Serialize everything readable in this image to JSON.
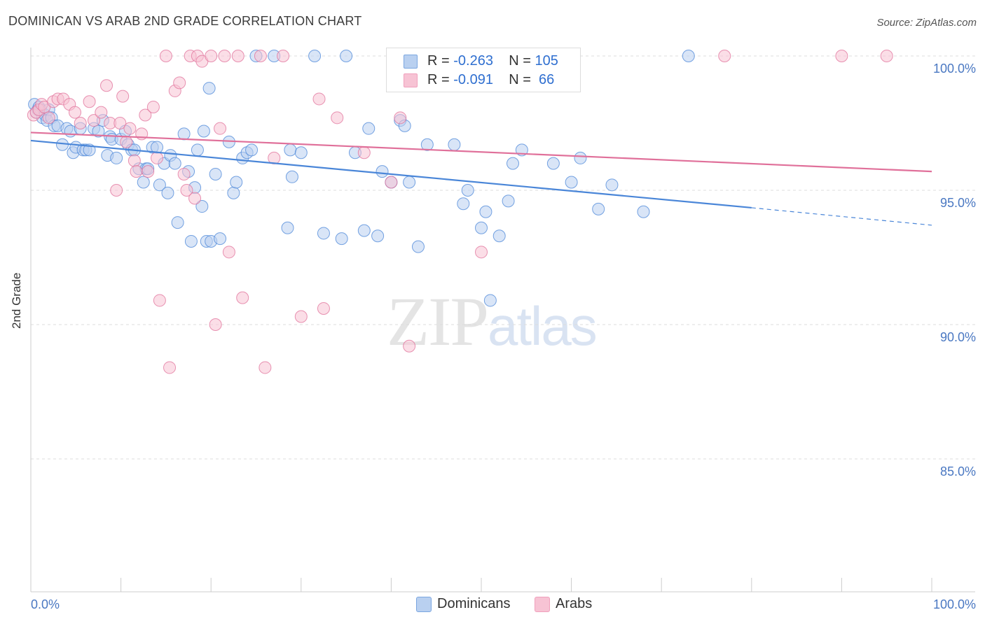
{
  "header": {
    "title": "DOMINICAN VS ARAB 2ND GRADE CORRELATION CHART",
    "source": "Source: ZipAtlas.com"
  },
  "watermark": {
    "zip": "ZIP",
    "atlas": "atlas"
  },
  "legend": {
    "dominicans": {
      "r_label": "R = ",
      "r_value": "-0.263",
      "n_label": "N = ",
      "n_value": "105",
      "color": "#7aa6e0"
    },
    "arabs": {
      "r_label": "R = ",
      "r_value": "-0.091",
      "n_label": "N = ",
      "n_value": " 66",
      "color": "#f0a0bc"
    }
  },
  "bottom_legend": {
    "dominicans": "Dominicans",
    "arabs": "Arabs"
  },
  "chart_data": {
    "type": "scatter",
    "title": "DOMINICAN VS ARAB 2ND GRADE CORRELATION CHART",
    "ylabel": "2nd Grade",
    "xlabel": "",
    "xlim": [
      0,
      100
    ],
    "ylim": [
      80,
      100.5
    ],
    "x_tick_labels": [
      "0.0%",
      "100.0%"
    ],
    "y_ticks": [
      100,
      95,
      90,
      85
    ],
    "y_tick_labels": [
      "100.0%",
      "95.0%",
      "90.0%",
      "85.0%"
    ],
    "grid": true,
    "series": [
      {
        "name": "Dominicans",
        "color": "#4a86d8",
        "fill": "#b9d0f0",
        "trend": {
          "x0": 0,
          "y0": 96.85,
          "x1": 80,
          "y1": 94.35,
          "dashed_to_x": 100,
          "dashed_to_y": 93.7
        },
        "points": [
          [
            0.4,
            98.2
          ],
          [
            0.6,
            97.9
          ],
          [
            0.8,
            98.0
          ],
          [
            0.9,
            98.1
          ],
          [
            1.1,
            98.0
          ],
          [
            1.3,
            97.7
          ],
          [
            1.6,
            97.8
          ],
          [
            1.8,
            97.6
          ],
          [
            2.0,
            98.0
          ],
          [
            2.3,
            97.7
          ],
          [
            2.6,
            97.4
          ],
          [
            3.0,
            97.4
          ],
          [
            3.5,
            96.7
          ],
          [
            4.0,
            97.3
          ],
          [
            4.4,
            97.2
          ],
          [
            4.7,
            96.4
          ],
          [
            5.0,
            96.6
          ],
          [
            5.5,
            97.3
          ],
          [
            5.8,
            96.5
          ],
          [
            6.1,
            96.5
          ],
          [
            6.5,
            96.5
          ],
          [
            7.0,
            97.3
          ],
          [
            7.5,
            97.2
          ],
          [
            8.0,
            97.6
          ],
          [
            8.5,
            96.3
          ],
          [
            8.8,
            97.0
          ],
          [
            9.0,
            96.9
          ],
          [
            9.5,
            96.2
          ],
          [
            10.0,
            96.9
          ],
          [
            10.5,
            97.2
          ],
          [
            10.8,
            96.7
          ],
          [
            11.2,
            96.5
          ],
          [
            11.5,
            96.5
          ],
          [
            12.0,
            95.8
          ],
          [
            12.5,
            95.3
          ],
          [
            12.8,
            95.8
          ],
          [
            13.0,
            95.8
          ],
          [
            13.5,
            96.6
          ],
          [
            14.0,
            96.6
          ],
          [
            14.3,
            95.2
          ],
          [
            14.8,
            96.0
          ],
          [
            15.2,
            94.9
          ],
          [
            15.5,
            96.3
          ],
          [
            16.0,
            96.0
          ],
          [
            16.3,
            93.8
          ],
          [
            17.0,
            97.1
          ],
          [
            17.5,
            95.7
          ],
          [
            17.8,
            93.1
          ],
          [
            18.2,
            95.1
          ],
          [
            18.5,
            96.5
          ],
          [
            19.0,
            94.4
          ],
          [
            19.2,
            97.2
          ],
          [
            19.5,
            93.1
          ],
          [
            19.8,
            98.8
          ],
          [
            20.0,
            93.1
          ],
          [
            20.5,
            95.6
          ],
          [
            21.0,
            93.2
          ],
          [
            22.0,
            96.8
          ],
          [
            22.5,
            94.9
          ],
          [
            22.8,
            95.3
          ],
          [
            23.5,
            96.2
          ],
          [
            24.0,
            96.4
          ],
          [
            24.5,
            96.5
          ],
          [
            25.0,
            100.0
          ],
          [
            27.0,
            100.0
          ],
          [
            28.5,
            93.6
          ],
          [
            28.8,
            96.5
          ],
          [
            29.0,
            95.5
          ],
          [
            30.0,
            96.4
          ],
          [
            31.5,
            100.0
          ],
          [
            32.5,
            93.4
          ],
          [
            34.5,
            93.2
          ],
          [
            35.0,
            100.0
          ],
          [
            36.0,
            96.4
          ],
          [
            37.0,
            93.5
          ],
          [
            37.5,
            97.3
          ],
          [
            38.5,
            93.3
          ],
          [
            39.0,
            95.7
          ],
          [
            40.0,
            95.3
          ],
          [
            40.5,
            100.0
          ],
          [
            41.0,
            97.6
          ],
          [
            41.5,
            97.4
          ],
          [
            42.0,
            95.3
          ],
          [
            43.0,
            92.9
          ],
          [
            44.0,
            96.7
          ],
          [
            47.0,
            96.7
          ],
          [
            48.0,
            94.5
          ],
          [
            48.5,
            95.0
          ],
          [
            50.0,
            93.6
          ],
          [
            50.5,
            94.2
          ],
          [
            52.0,
            93.3
          ],
          [
            53.0,
            94.6
          ],
          [
            53.5,
            96.0
          ],
          [
            54.5,
            96.5
          ],
          [
            57.0,
            100.0
          ],
          [
            58.0,
            96.0
          ],
          [
            60.0,
            95.3
          ],
          [
            61.0,
            96.2
          ],
          [
            63.0,
            94.3
          ],
          [
            64.5,
            95.2
          ],
          [
            68.0,
            94.2
          ],
          [
            73.0,
            100.0
          ],
          [
            45.0,
            100.0
          ],
          [
            40.5,
            100.0
          ],
          [
            51.0,
            90.9
          ]
        ]
      },
      {
        "name": "Arabs",
        "color": "#e0709a",
        "fill": "#f7c3d4",
        "trend": {
          "x0": 0,
          "y0": 97.15,
          "x1": 100,
          "y1": 95.7
        },
        "points": [
          [
            0.3,
            97.8
          ],
          [
            0.6,
            97.9
          ],
          [
            0.9,
            98.0
          ],
          [
            1.2,
            98.2
          ],
          [
            1.5,
            98.1
          ],
          [
            2.0,
            97.7
          ],
          [
            2.5,
            98.3
          ],
          [
            3.0,
            98.4
          ],
          [
            3.6,
            98.4
          ],
          [
            4.3,
            98.2
          ],
          [
            4.9,
            97.9
          ],
          [
            5.5,
            97.5
          ],
          [
            6.5,
            98.3
          ],
          [
            7.0,
            97.6
          ],
          [
            7.8,
            97.9
          ],
          [
            8.4,
            98.9
          ],
          [
            8.8,
            97.5
          ],
          [
            9.5,
            95.0
          ],
          [
            9.9,
            97.5
          ],
          [
            10.2,
            98.5
          ],
          [
            10.6,
            96.8
          ],
          [
            11.0,
            97.3
          ],
          [
            11.5,
            96.1
          ],
          [
            11.7,
            95.7
          ],
          [
            12.3,
            97.1
          ],
          [
            12.7,
            97.8
          ],
          [
            13.0,
            95.7
          ],
          [
            13.6,
            98.1
          ],
          [
            14.0,
            96.2
          ],
          [
            14.3,
            90.9
          ],
          [
            15.0,
            100.0
          ],
          [
            15.4,
            88.4
          ],
          [
            16.0,
            98.7
          ],
          [
            16.5,
            99.0
          ],
          [
            17.0,
            95.6
          ],
          [
            17.3,
            95.0
          ],
          [
            17.7,
            100.0
          ],
          [
            18.2,
            94.7
          ],
          [
            18.5,
            100.0
          ],
          [
            19.0,
            99.8
          ],
          [
            20.0,
            100.0
          ],
          [
            20.5,
            90.0
          ],
          [
            21.0,
            97.3
          ],
          [
            21.5,
            100.0
          ],
          [
            22.0,
            92.7
          ],
          [
            23.0,
            100.0
          ],
          [
            23.5,
            91.0
          ],
          [
            25.5,
            100.0
          ],
          [
            26.0,
            88.4
          ],
          [
            27.0,
            96.2
          ],
          [
            28.0,
            100.0
          ],
          [
            30.0,
            90.3
          ],
          [
            32.0,
            98.4
          ],
          [
            32.5,
            90.6
          ],
          [
            34.0,
            97.7
          ],
          [
            37.0,
            96.4
          ],
          [
            40.0,
            95.3
          ],
          [
            41.0,
            97.7
          ],
          [
            42.0,
            89.2
          ],
          [
            46.0,
            100.0
          ],
          [
            48.5,
            100.0
          ],
          [
            50.0,
            92.7
          ],
          [
            55.0,
            100.0
          ],
          [
            77.0,
            100.0
          ],
          [
            90.0,
            100.0
          ],
          [
            95.0,
            100.0
          ]
        ]
      }
    ]
  }
}
